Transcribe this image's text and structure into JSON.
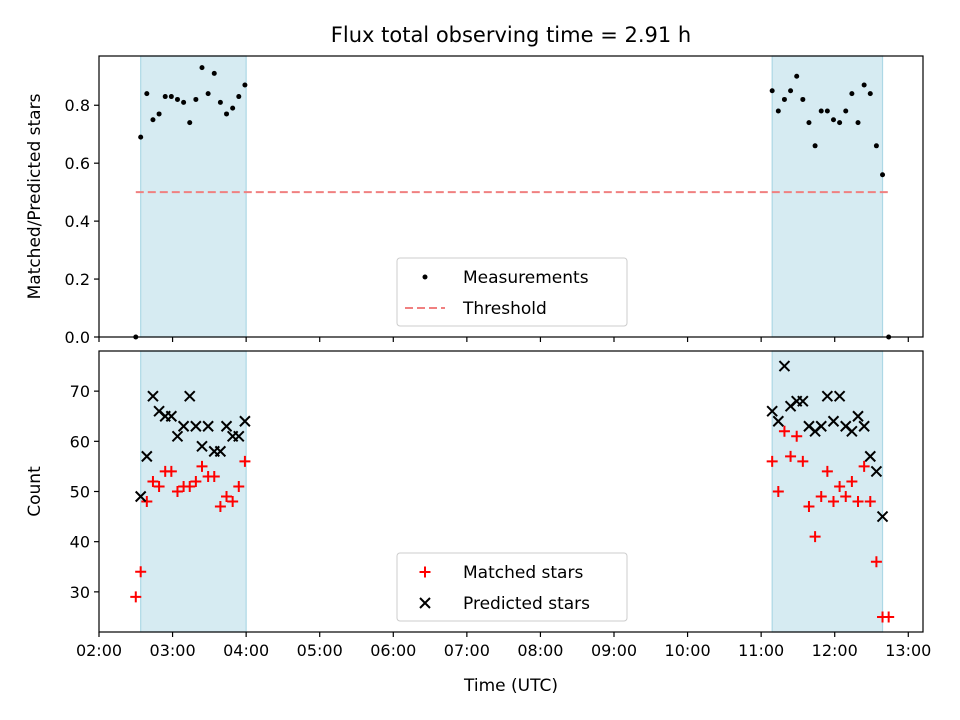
{
  "title": "Flux total observing time = 2.91 h",
  "xlabel": "Time (UTC)",
  "x_ticks": [
    "02:00",
    "03:00",
    "04:00",
    "05:00",
    "06:00",
    "07:00",
    "08:00",
    "09:00",
    "10:00",
    "11:00",
    "12:00",
    "13:00"
  ],
  "colors": {
    "shade": "#add8e6",
    "threshold": "#f08080",
    "matched": "#ff0000",
    "predicted": "#000000",
    "measurements": "#000000"
  },
  "chart_data": [
    {
      "type": "scatter",
      "ylabel": "Matched/Predicted stars",
      "xlim": [
        "02:00",
        "13:12"
      ],
      "ylim": [
        0,
        0.97
      ],
      "y_ticks": [
        "0.0",
        "0.2",
        "0.4",
        "0.6",
        "0.8"
      ],
      "legend": {
        "placement": "lower-center",
        "entries": [
          "Measurements",
          "Threshold"
        ]
      },
      "shaded_intervals": [
        [
          "02:34",
          "04:00"
        ],
        [
          "11:09",
          "12:39"
        ]
      ],
      "threshold": {
        "value": 0.5,
        "x_range": [
          "02:30",
          "12:44"
        ]
      },
      "series": [
        {
          "name": "Measurements",
          "points": [
            [
              "02:30",
              0.0
            ],
            [
              "02:34",
              0.69
            ],
            [
              "02:39",
              0.84
            ],
            [
              "02:44",
              0.75
            ],
            [
              "02:49",
              0.77
            ],
            [
              "02:54",
              0.83
            ],
            [
              "02:59",
              0.83
            ],
            [
              "03:04",
              0.82
            ],
            [
              "03:09",
              0.81
            ],
            [
              "03:14",
              0.74
            ],
            [
              "03:19",
              0.82
            ],
            [
              "03:24",
              0.93
            ],
            [
              "03:29",
              0.84
            ],
            [
              "03:34",
              0.91
            ],
            [
              "03:39",
              0.81
            ],
            [
              "03:44",
              0.77
            ],
            [
              "03:49",
              0.79
            ],
            [
              "03:54",
              0.83
            ],
            [
              "03:59",
              0.87
            ],
            [
              "11:09",
              0.85
            ],
            [
              "11:14",
              0.78
            ],
            [
              "11:19",
              0.82
            ],
            [
              "11:24",
              0.85
            ],
            [
              "11:29",
              0.9
            ],
            [
              "11:34",
              0.82
            ],
            [
              "11:39",
              0.74
            ],
            [
              "11:44",
              0.66
            ],
            [
              "11:49",
              0.78
            ],
            [
              "11:54",
              0.78
            ],
            [
              "11:59",
              0.75
            ],
            [
              "12:04",
              0.74
            ],
            [
              "12:09",
              0.78
            ],
            [
              "12:14",
              0.84
            ],
            [
              "12:19",
              0.74
            ],
            [
              "12:24",
              0.87
            ],
            [
              "12:29",
              0.84
            ],
            [
              "12:34",
              0.66
            ],
            [
              "12:39",
              0.56
            ],
            [
              "12:44",
              0.0
            ]
          ]
        }
      ]
    },
    {
      "type": "scatter",
      "ylabel": "Count",
      "xlim": [
        "02:00",
        "13:12"
      ],
      "ylim": [
        22,
        78
      ],
      "y_ticks": [
        "30",
        "40",
        "50",
        "60",
        "70"
      ],
      "legend": {
        "placement": "lower-center",
        "entries": [
          "Matched stars",
          "Predicted stars"
        ]
      },
      "shaded_intervals": [
        [
          "02:34",
          "04:00"
        ],
        [
          "11:09",
          "12:39"
        ]
      ],
      "series": [
        {
          "name": "Matched stars",
          "marker": "plus",
          "points": [
            [
              "02:30",
              29
            ],
            [
              "02:34",
              34
            ],
            [
              "02:39",
              48
            ],
            [
              "02:44",
              52
            ],
            [
              "02:49",
              51
            ],
            [
              "02:54",
              54
            ],
            [
              "02:59",
              54
            ],
            [
              "03:04",
              50
            ],
            [
              "03:09",
              51
            ],
            [
              "03:14",
              51
            ],
            [
              "03:19",
              52
            ],
            [
              "03:24",
              55
            ],
            [
              "03:29",
              53
            ],
            [
              "03:34",
              53
            ],
            [
              "03:39",
              47
            ],
            [
              "03:44",
              49
            ],
            [
              "03:49",
              48
            ],
            [
              "03:54",
              51
            ],
            [
              "03:59",
              56
            ],
            [
              "11:09",
              56
            ],
            [
              "11:14",
              50
            ],
            [
              "11:19",
              62
            ],
            [
              "11:24",
              57
            ],
            [
              "11:29",
              61
            ],
            [
              "11:34",
              56
            ],
            [
              "11:39",
              47
            ],
            [
              "11:44",
              41
            ],
            [
              "11:49",
              49
            ],
            [
              "11:54",
              54
            ],
            [
              "11:59",
              48
            ],
            [
              "12:04",
              51
            ],
            [
              "12:09",
              49
            ],
            [
              "12:14",
              52
            ],
            [
              "12:19",
              48
            ],
            [
              "12:24",
              55
            ],
            [
              "12:29",
              48
            ],
            [
              "12:34",
              36
            ],
            [
              "12:39",
              25
            ],
            [
              "12:44",
              25
            ]
          ]
        },
        {
          "name": "Predicted stars",
          "marker": "x",
          "points": [
            [
              "02:34",
              49
            ],
            [
              "02:39",
              57
            ],
            [
              "02:44",
              69
            ],
            [
              "02:49",
              66
            ],
            [
              "02:54",
              65
            ],
            [
              "02:59",
              65
            ],
            [
              "03:04",
              61
            ],
            [
              "03:09",
              63
            ],
            [
              "03:14",
              69
            ],
            [
              "03:19",
              63
            ],
            [
              "03:24",
              59
            ],
            [
              "03:29",
              63
            ],
            [
              "03:34",
              58
            ],
            [
              "03:39",
              58
            ],
            [
              "03:44",
              63
            ],
            [
              "03:49",
              61
            ],
            [
              "03:54",
              61
            ],
            [
              "03:59",
              64
            ],
            [
              "11:09",
              66
            ],
            [
              "11:14",
              64
            ],
            [
              "11:19",
              75
            ],
            [
              "11:24",
              67
            ],
            [
              "11:29",
              68
            ],
            [
              "11:34",
              68
            ],
            [
              "11:39",
              63
            ],
            [
              "11:44",
              62
            ],
            [
              "11:49",
              63
            ],
            [
              "11:54",
              69
            ],
            [
              "11:59",
              64
            ],
            [
              "12:04",
              69
            ],
            [
              "12:09",
              63
            ],
            [
              "12:14",
              62
            ],
            [
              "12:19",
              65
            ],
            [
              "12:24",
              63
            ],
            [
              "12:29",
              57
            ],
            [
              "12:34",
              54
            ],
            [
              "12:39",
              45
            ]
          ]
        }
      ]
    }
  ]
}
